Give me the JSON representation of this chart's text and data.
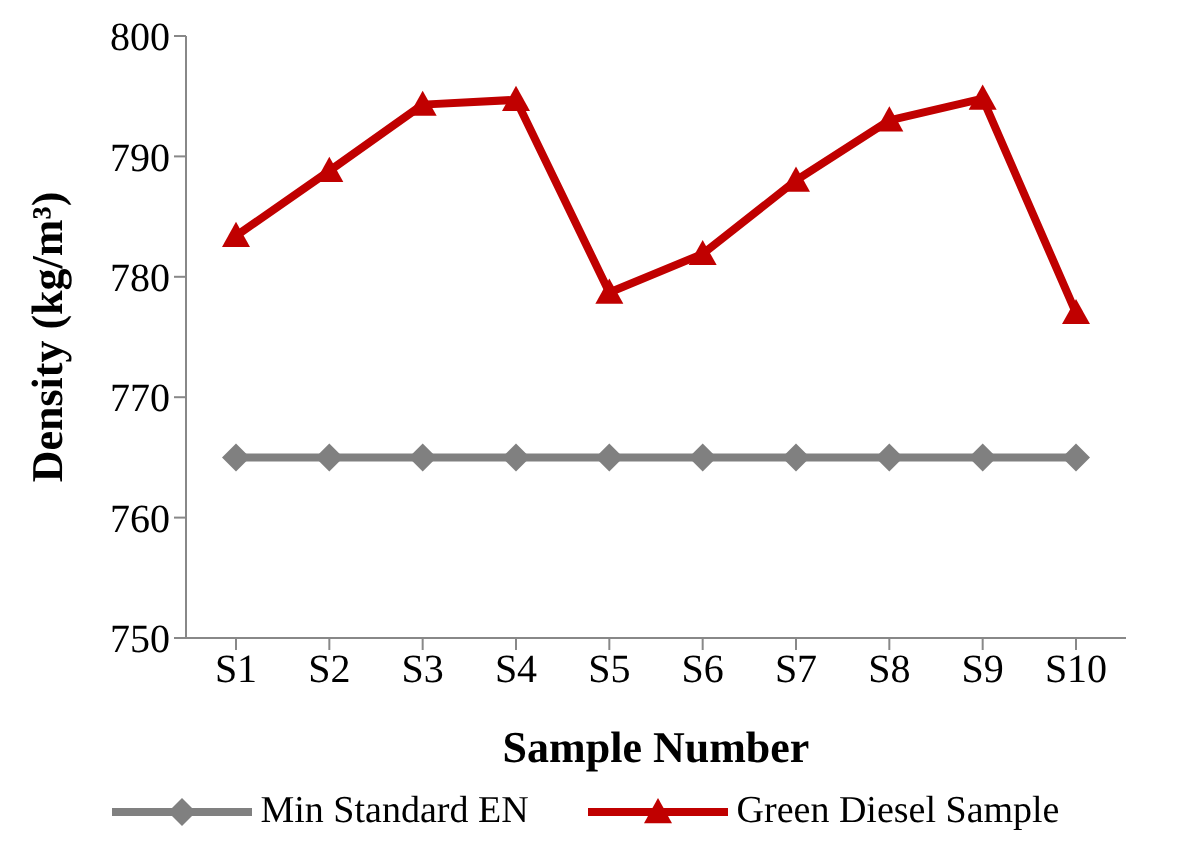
{
  "chart_data": {
    "type": "line",
    "xlabel": "Sample Number",
    "ylabel": "Density (kg/m³)",
    "categories": [
      "S1",
      "S2",
      "S3",
      "S4",
      "S5",
      "S6",
      "S7",
      "S8",
      "S9",
      "S10"
    ],
    "series": [
      {
        "name": "Min Standard EN",
        "color": "#808080",
        "marker": "diamond",
        "values": [
          765,
          765,
          765,
          765,
          765,
          765,
          765,
          765,
          765,
          765
        ]
      },
      {
        "name": "Green Diesel Sample",
        "color": "#c00000",
        "marker": "triangle",
        "values": [
          783.4,
          788.8,
          794.3,
          794.7,
          778.7,
          781.9,
          788,
          793,
          794.8,
          777
        ]
      }
    ],
    "ylim": [
      750,
      800
    ],
    "yticks": [
      750,
      760,
      770,
      780,
      790,
      800
    ],
    "grid": false,
    "legend": "bottom",
    "line_style": "solid"
  }
}
